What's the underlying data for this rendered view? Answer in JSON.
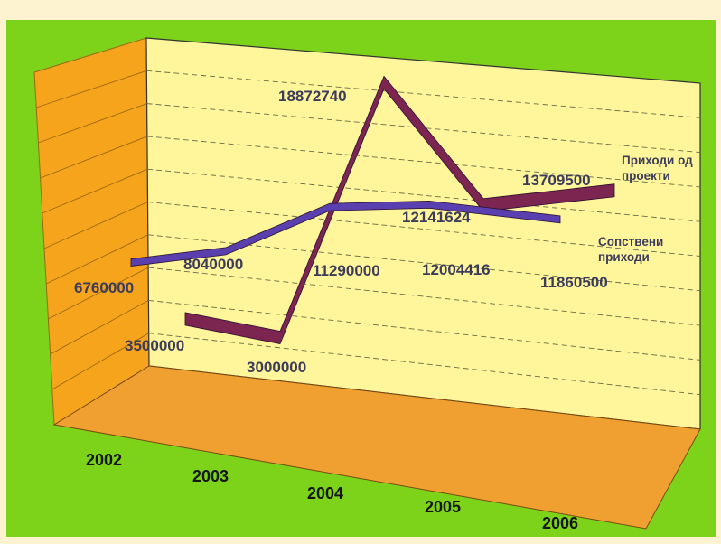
{
  "colors": {
    "frame": "#fdf3d0",
    "background": "#7cd31a",
    "back_wall": "#fff59a",
    "side_wall": "#f6a41c",
    "floor": "#f0a030",
    "series_projects": "#7b2550",
    "series_own": "#5a3fae",
    "value_label": "#3c3c5a",
    "axis_label": "#151515"
  },
  "chart_data": {
    "type": "line",
    "style": "3d-ribbon",
    "title": "",
    "xlabel": "",
    "ylabel": "",
    "categories": [
      "2002",
      "2003",
      "2004",
      "2005",
      "2006"
    ],
    "ylim": [
      0,
      20000000
    ],
    "grid": true,
    "legend": "series names printed at right end of each line",
    "series": [
      {
        "name": "Приходи од проекти",
        "name_lines": [
          "Приходи од",
          "проекти"
        ],
        "values": [
          3500000,
          3000000,
          18872740,
          12141624,
          13709500
        ],
        "labels": [
          "3500000",
          "3000000",
          "18872740",
          "12141624",
          "13709500"
        ]
      },
      {
        "name": "Сопствени приходи",
        "name_lines": [
          "Сопствени",
          "приходи"
        ],
        "values": [
          6760000,
          8040000,
          11290000,
          12004416,
          11860500
        ],
        "labels": [
          "6760000",
          "8040000",
          "11290000",
          "12004416",
          "11860500"
        ]
      }
    ]
  }
}
